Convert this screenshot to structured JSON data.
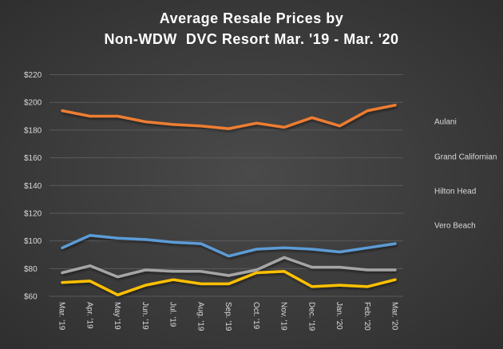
{
  "chart_data": {
    "type": "line",
    "title": [
      "Average Resale Prices by",
      "Non-WDW  DVC Resort Mar. '19 - Mar. '20"
    ],
    "xlabel": "",
    "ylabel": "",
    "categories": [
      "Mar. '19",
      "Apr. '19",
      "May '19",
      "Jun. '19",
      "Jul. '19",
      "Aug. '19",
      "Sep. '19",
      "Oct. '19",
      "Nov. '19",
      "Dec. '19",
      "Jan. '20",
      "Feb. '20",
      "Mar. '20"
    ],
    "ylim": [
      60,
      220
    ],
    "yticks": [
      60,
      80,
      100,
      120,
      140,
      160,
      180,
      200,
      220
    ],
    "ytick_labels": [
      "$60",
      "$80",
      "$100",
      "$120",
      "$140",
      "$160",
      "$180",
      "$200",
      "$220"
    ],
    "grid": true,
    "legend_placement": "right",
    "series": [
      {
        "name": "Aulani",
        "color": "#5b9bd5",
        "values": [
          95,
          104,
          102,
          101,
          99,
          98,
          89,
          94,
          95,
          94,
          92,
          95,
          98
        ]
      },
      {
        "name": "Grand Californian",
        "color": "#ed7d31",
        "values": [
          194,
          190,
          190,
          186,
          184,
          183,
          181,
          185,
          182,
          189,
          183,
          194,
          198
        ]
      },
      {
        "name": "Hilton Head",
        "color": "#a5a5a5",
        "values": [
          77,
          82,
          74,
          79,
          78,
          78,
          75,
          79,
          88,
          81,
          81,
          79,
          79
        ]
      },
      {
        "name": "Vero Beach",
        "color": "#ffc000",
        "values": [
          70,
          71,
          61,
          68,
          72,
          69,
          69,
          77,
          78,
          67,
          68,
          67,
          72
        ]
      }
    ]
  },
  "colors": {
    "background": "#3a3a3a",
    "grid": "#5a5a5a"
  }
}
